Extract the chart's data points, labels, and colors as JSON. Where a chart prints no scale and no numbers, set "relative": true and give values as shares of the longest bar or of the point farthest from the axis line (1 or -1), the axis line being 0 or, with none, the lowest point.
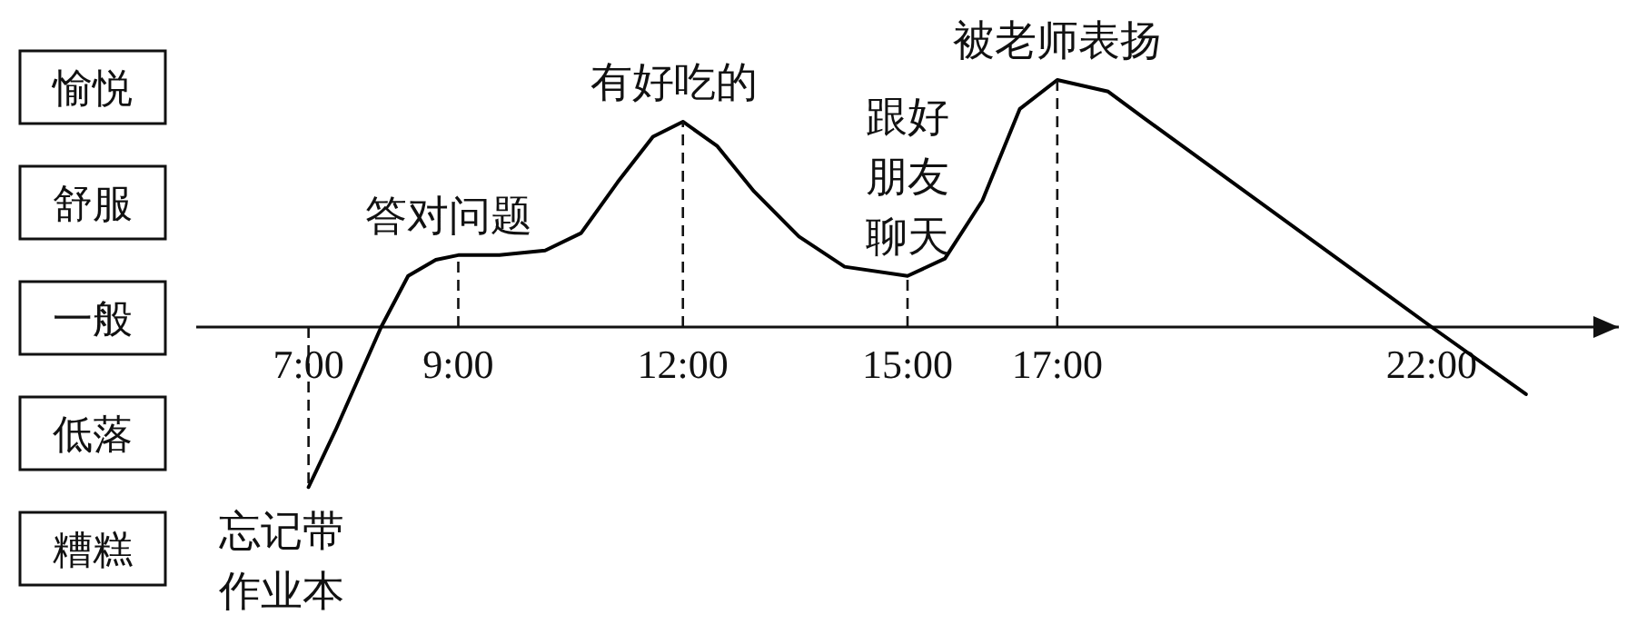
{
  "chart_data": {
    "type": "line",
    "relative": true,
    "xlim": [
      5.5,
      24.5
    ],
    "xticks": [
      {
        "value": 7,
        "label": "7:00"
      },
      {
        "value": 9,
        "label": "9:00"
      },
      {
        "value": 12,
        "label": "12:00"
      },
      {
        "value": 15,
        "label": "15:00"
      },
      {
        "value": 17,
        "label": "17:00"
      },
      {
        "value": 22,
        "label": "22:00"
      }
    ],
    "series": [
      {
        "color": "#000000",
        "x": [
          7,
          7.36,
          7.97,
          8.33,
          8.7,
          9,
          9.55,
          10.16,
          10.64,
          11.13,
          11.6,
          12,
          12.46,
          12.95,
          13.55,
          14.16,
          15,
          15.5,
          16,
          16.5,
          17,
          17.68,
          18.16,
          22,
          23.26
        ],
        "values": [
          -0.648,
          -0.418,
          0,
          0.207,
          0.272,
          0.291,
          0.291,
          0.31,
          0.38,
          0.587,
          0.77,
          0.831,
          0.732,
          0.549,
          0.366,
          0.244,
          0.207,
          0.277,
          0.512,
          0.883,
          1,
          0.953,
          0.845,
          0,
          -0.272
        ]
      }
    ],
    "annotations": [
      "愉悦",
      "舒服",
      "一般",
      "低落",
      "糟糕",
      {
        "text": "忘记带作业本",
        "x": 7,
        "y": -0.648
      },
      {
        "text": "答对问题",
        "x": 9,
        "y": 0.291
      },
      {
        "text": "有好吃的",
        "x": 12,
        "y": 0.831
      },
      {
        "text": "跟好朋友聊天",
        "x": 15,
        "y": 0.207
      },
      {
        "text": "被老师表扬",
        "x": 17,
        "y": 1
      }
    ],
    "marker": "none",
    "line_style": "solid"
  }
}
